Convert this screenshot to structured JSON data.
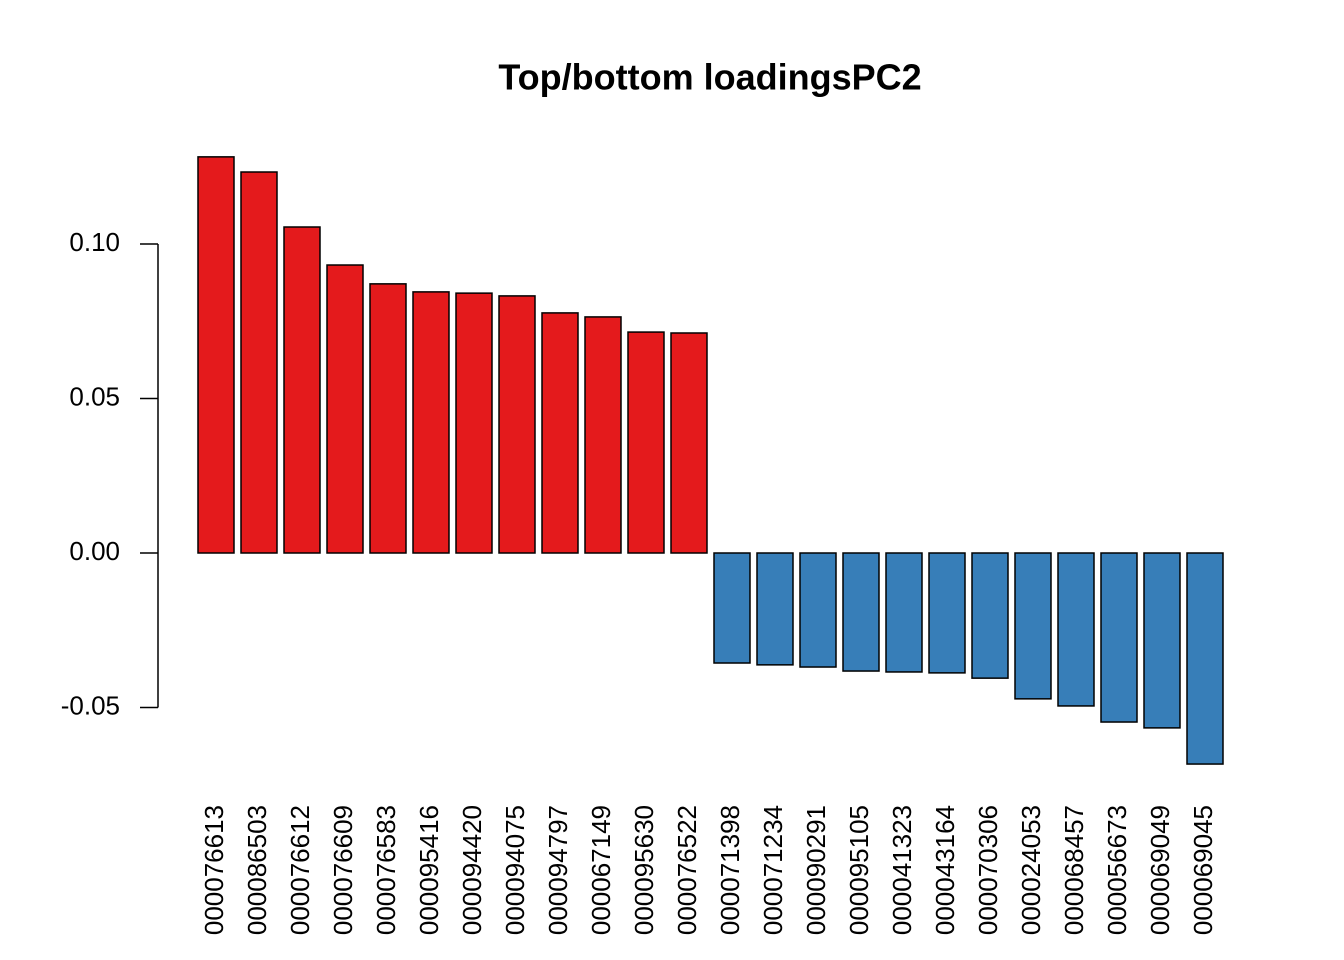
{
  "chart_data": {
    "type": "bar",
    "title": "Top/bottom loadingsPC2",
    "categories": [
      "000076613",
      "000086503",
      "000076612",
      "000076609",
      "000076583",
      "000095416",
      "000094420",
      "000094075",
      "000094797",
      "000067149",
      "000095630",
      "000076522",
      "000071398",
      "000071234",
      "000090291",
      "000095105",
      "000041323",
      "000043164",
      "000070306",
      "000024053",
      "000068457",
      "000056673",
      "000069049",
      "000069045"
    ],
    "values": [
      0.1282,
      0.1233,
      0.1055,
      0.0932,
      0.0871,
      0.0845,
      0.0841,
      0.0832,
      0.0777,
      0.0764,
      0.0715,
      0.0712,
      -0.0356,
      -0.0362,
      -0.0369,
      -0.0382,
      -0.0385,
      -0.0388,
      -0.0405,
      -0.0472,
      -0.0495,
      -0.0547,
      -0.0566,
      -0.0683
    ],
    "colors": [
      "#e41a1c",
      "#e41a1c",
      "#e41a1c",
      "#e41a1c",
      "#e41a1c",
      "#e41a1c",
      "#e41a1c",
      "#e41a1c",
      "#e41a1c",
      "#e41a1c",
      "#e41a1c",
      "#e41a1c",
      "#377eb8",
      "#377eb8",
      "#377eb8",
      "#377eb8",
      "#377eb8",
      "#377eb8",
      "#377eb8",
      "#377eb8",
      "#377eb8",
      "#377eb8",
      "#377eb8",
      "#377eb8"
    ],
    "ylim": [
      -0.075,
      0.135
    ],
    "yticks": [
      {
        "value": -0.05,
        "label": "-0.05"
      },
      {
        "value": 0,
        "label": "0.00"
      },
      {
        "value": 0.05,
        "label": "0.05"
      },
      {
        "value": 0.1,
        "label": "0.10"
      }
    ]
  }
}
